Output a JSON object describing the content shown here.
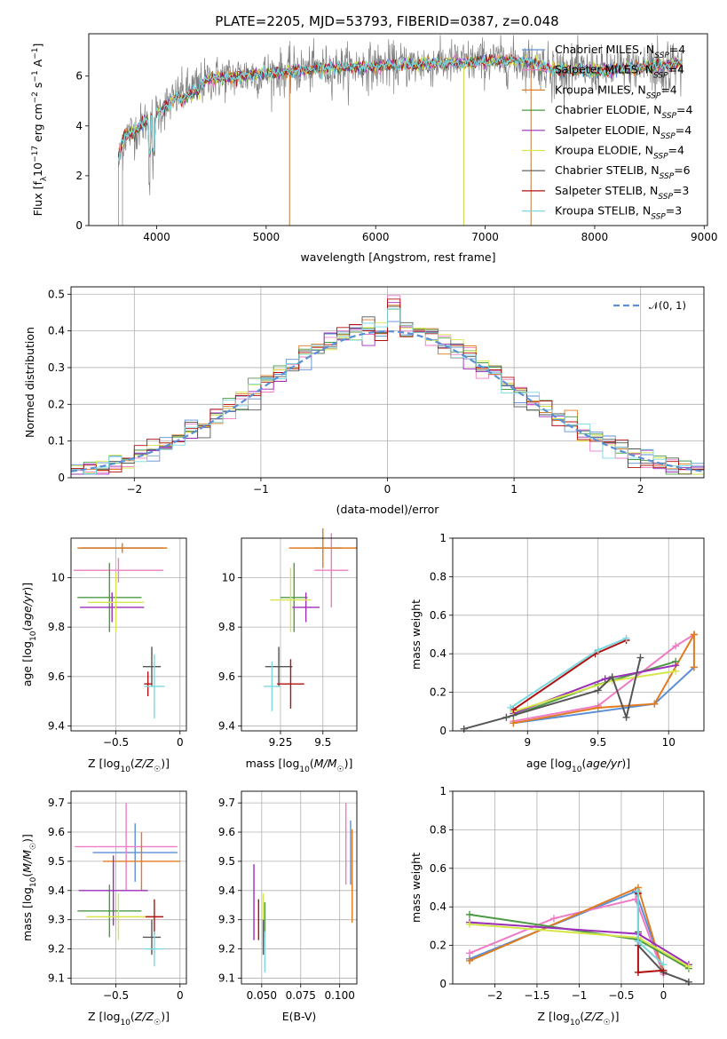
{
  "figure": {
    "title": "PLATE=2205, MJD=53793, FIBERID=0387, z=0.048"
  },
  "colors": {
    "Chabrier MILES": "#5b8fd6",
    "Salpeter MILES": "#ef7bc6",
    "Kroupa MILES": "#e07b20",
    "Chabrier ELODIE": "#4d9a45",
    "Salpeter ELODIE": "#9b2fb8",
    "Kroupa ELODIE": "#d6e64a",
    "Chabrier STELIB": "#555555",
    "Salpeter STELIB": "#b01010",
    "Kroupa STELIB": "#7ad8df"
  },
  "legend_spectrum": [
    {
      "name": "Chabrier MILES",
      "nssp": "4"
    },
    {
      "name": "Salpeter MILES",
      "nssp": "4"
    },
    {
      "name": "Kroupa MILES",
      "nssp": "4"
    },
    {
      "name": "Chabrier ELODIE",
      "nssp": "4"
    },
    {
      "name": "Salpeter ELODIE",
      "nssp": "4"
    },
    {
      "name": "Kroupa ELODIE",
      "nssp": "4"
    },
    {
      "name": "Chabrier STELIB",
      "nssp": "6"
    },
    {
      "name": "Salpeter STELIB",
      "nssp": "3"
    },
    {
      "name": "Kroupa STELIB",
      "nssp": "3"
    }
  ],
  "legend_hist": "𝒩(0, 1)",
  "chart_data": [
    {
      "id": "spectrum",
      "type": "line",
      "xlabel": "wavelength [Angstrom, rest frame]",
      "ylabel": "Flux [f_λ 10^-17 erg cm^-2 s^-1 A^-1]",
      "xlim": [
        3380,
        9030
      ],
      "ylim": [
        0,
        7.7
      ],
      "xticks": [
        4000,
        5000,
        6000,
        7000,
        8000,
        9000
      ],
      "yticks": [
        0,
        2,
        4,
        6
      ],
      "data_points": {
        "x": [
          3650,
          3700,
          3800,
          3900,
          4000,
          4200,
          4500,
          5000,
          5500,
          6000,
          6500,
          7000,
          7400,
          7600,
          8000,
          8500,
          8800
        ],
        "y": [
          2.8,
          3.6,
          3.8,
          4.2,
          4.5,
          5.2,
          5.9,
          6.1,
          6.3,
          6.4,
          6.5,
          6.6,
          6.6,
          6.3,
          6.2,
          6.4,
          6.5
        ]
      }
    },
    {
      "id": "residual_histogram",
      "type": "line",
      "xlabel": "(data-model)/error",
      "ylabel": "Normed distribution",
      "xlim": [
        -2.5,
        2.5
      ],
      "ylim": [
        0,
        0.52
      ],
      "xticks": [
        -2,
        -1,
        0,
        1,
        2
      ],
      "yticks": [
        0.0,
        0.1,
        0.2,
        0.3,
        0.4,
        0.5
      ],
      "grid": true,
      "legend_position": "top-right",
      "series": [
        {
          "name": "𝒩(0, 1)",
          "style": "dashed",
          "mean": 0,
          "sigma": 1
        }
      ]
    },
    {
      "id": "age_vs_Z",
      "type": "scatter",
      "xlabel": "Z [log10(Z/Z☉)]",
      "ylabel": "age [log10(age/yr)]",
      "xlim": [
        -0.85,
        0.05
      ],
      "ylim": [
        9.38,
        10.16
      ],
      "xticks": [
        -0.5,
        0.0
      ],
      "yticks": [
        9.4,
        9.6,
        9.8,
        10.0
      ],
      "grid": true,
      "points": [
        {
          "model": "Chabrier MILES",
          "x": -0.45,
          "xerr": 0.32,
          "y": 10.12,
          "yerr": 0.0
        },
        {
          "model": "Salpeter MILES",
          "x": -0.48,
          "xerr": 0.35,
          "y": 10.03,
          "yerr": 0.05
        },
        {
          "model": "Kroupa MILES",
          "x": -0.45,
          "xerr": 0.35,
          "y": 10.12,
          "yerr": 0.02
        },
        {
          "model": "Chabrier ELODIE",
          "x": -0.55,
          "xerr": 0.25,
          "y": 9.92,
          "yerr": 0.14
        },
        {
          "model": "Salpeter ELODIE",
          "x": -0.53,
          "xerr": 0.25,
          "y": 9.88,
          "yerr": 0.06
        },
        {
          "model": "Kroupa ELODIE",
          "x": -0.5,
          "xerr": 0.22,
          "y": 9.9,
          "yerr": 0.12
        },
        {
          "model": "Chabrier STELIB",
          "x": -0.22,
          "xerr": 0.07,
          "y": 9.64,
          "yerr": 0.08
        },
        {
          "model": "Salpeter STELIB",
          "x": -0.25,
          "xerr": 0.03,
          "y": 9.57,
          "yerr": 0.05
        },
        {
          "model": "Kroupa STELIB",
          "x": -0.2,
          "xerr": 0.08,
          "y": 9.56,
          "yerr": 0.13
        }
      ]
    },
    {
      "id": "age_vs_mass",
      "type": "scatter",
      "xlabel": "mass [log10(M/M☉)]",
      "ylabel": "",
      "xlim": [
        9.02,
        9.7
      ],
      "ylim": [
        9.38,
        10.16
      ],
      "xticks": [
        9.25,
        9.5
      ],
      "yticks": [
        9.4,
        9.6,
        9.8,
        10.0
      ],
      "grid": true,
      "points": [
        {
          "model": "Chabrier MILES",
          "x": 9.53,
          "xerr": 0.08,
          "y": 10.12,
          "yerr": 0.0
        },
        {
          "model": "Salpeter MILES",
          "x": 9.55,
          "xerr": 0.1,
          "y": 10.03,
          "yerr": 0.15
        },
        {
          "model": "Kroupa MILES",
          "x": 9.5,
          "xerr": 0.2,
          "y": 10.12,
          "yerr": 0.08
        },
        {
          "model": "Chabrier ELODIE",
          "x": 9.33,
          "xerr": 0.08,
          "y": 9.92,
          "yerr": 0.14
        },
        {
          "model": "Salpeter ELODIE",
          "x": 9.4,
          "xerr": 0.08,
          "y": 9.88,
          "yerr": 0.06
        },
        {
          "model": "Kroupa ELODIE",
          "x": 9.31,
          "xerr": 0.12,
          "y": 9.91,
          "yerr": 0.13
        },
        {
          "model": "Chabrier STELIB",
          "x": 9.24,
          "xerr": 0.08,
          "y": 9.64,
          "yerr": 0.08
        },
        {
          "model": "Salpeter STELIB",
          "x": 9.31,
          "xerr": 0.08,
          "y": 9.57,
          "yerr": 0.1
        },
        {
          "model": "Kroupa STELIB",
          "x": 9.2,
          "xerr": 0.05,
          "y": 9.56,
          "yerr": 0.1
        }
      ]
    },
    {
      "id": "mass_weight_vs_age",
      "type": "line",
      "xlabel": "age [log10(age/yr)]",
      "ylabel": "mass weight",
      "xlim": [
        8.47,
        10.25
      ],
      "ylim": [
        0,
        1.0
      ],
      "xticks": [
        9.0,
        9.5,
        10.0
      ],
      "yticks": [
        0.0,
        0.2,
        0.4,
        0.6,
        0.8,
        1.0
      ],
      "grid": true,
      "series": [
        {
          "name": "Chabrier MILES",
          "x": [
            8.9,
            9.9,
            10.18
          ],
          "y": [
            0.04,
            0.14,
            0.33
          ]
        },
        {
          "name": "Salpeter MILES",
          "x": [
            8.9,
            9.5,
            10.05,
            10.18
          ],
          "y": [
            0.05,
            0.13,
            0.44,
            0.5
          ]
        },
        {
          "name": "Kroupa MILES",
          "x": [
            8.9,
            9.5,
            9.9,
            10.18,
            10.18
          ],
          "y": [
            0.04,
            0.12,
            0.14,
            0.5,
            0.33
          ]
        },
        {
          "name": "Chabrier ELODIE",
          "x": [
            8.9,
            9.5,
            10.05
          ],
          "y": [
            0.08,
            0.24,
            0.36
          ]
        },
        {
          "name": "Salpeter ELODIE",
          "x": [
            8.9,
            9.55,
            10.05
          ],
          "y": [
            0.09,
            0.27,
            0.34
          ]
        },
        {
          "name": "Kroupa ELODIE",
          "x": [
            8.9,
            9.6,
            10.05
          ],
          "y": [
            0.1,
            0.26,
            0.31
          ]
        },
        {
          "name": "Chabrier STELIB",
          "x": [
            8.55,
            8.85,
            9.5,
            9.6,
            9.7,
            9.8
          ],
          "y": [
            0.01,
            0.07,
            0.21,
            0.28,
            0.07,
            0.38
          ]
        },
        {
          "name": "Salpeter STELIB",
          "x": [
            8.9,
            9.48,
            9.7
          ],
          "y": [
            0.11,
            0.4,
            0.47
          ]
        },
        {
          "name": "Kroupa STELIB",
          "x": [
            8.88,
            9.5,
            9.7
          ],
          "y": [
            0.12,
            0.42,
            0.48
          ]
        }
      ]
    },
    {
      "id": "mass_vs_Z",
      "type": "scatter",
      "xlabel": "Z [log10(Z/Z☉)]",
      "ylabel": "mass [log10(M/M☉)]",
      "xlim": [
        -0.85,
        0.05
      ],
      "ylim": [
        9.08,
        9.74
      ],
      "xticks": [
        -0.5,
        0.0
      ],
      "yticks": [
        9.1,
        9.2,
        9.3,
        9.4,
        9.5,
        9.6,
        9.7
      ],
      "grid": true,
      "points": [
        {
          "model": "Chabrier MILES",
          "x": -0.35,
          "xerr": 0.33,
          "y": 9.53,
          "yerr": 0.1
        },
        {
          "model": "Salpeter MILES",
          "x": -0.42,
          "xerr": 0.4,
          "y": 9.55,
          "yerr": 0.15
        },
        {
          "model": "Kroupa MILES",
          "x": -0.3,
          "xerr": 0.3,
          "y": 9.5,
          "yerr": 0.1
        },
        {
          "model": "Chabrier ELODIE",
          "x": -0.55,
          "xerr": 0.25,
          "y": 9.33,
          "yerr": 0.09
        },
        {
          "model": "Salpeter ELODIE",
          "x": -0.52,
          "xerr": 0.27,
          "y": 9.4,
          "yerr": 0.12
        },
        {
          "model": "Kroupa ELODIE",
          "x": -0.48,
          "xerr": 0.25,
          "y": 9.31,
          "yerr": 0.08
        },
        {
          "model": "Chabrier STELIB",
          "x": -0.22,
          "xerr": 0.07,
          "y": 9.24,
          "yerr": 0.06
        },
        {
          "model": "Salpeter STELIB",
          "x": -0.2,
          "xerr": 0.07,
          "y": 9.31,
          "yerr": 0.06
        },
        {
          "model": "Kroupa STELIB",
          "x": -0.2,
          "xerr": 0.08,
          "y": 9.2,
          "yerr": 0.06
        }
      ]
    },
    {
      "id": "mass_vs_ebv",
      "type": "scatter",
      "xlabel": "E(B-V)",
      "ylabel": "",
      "xlim": [
        0.037,
        0.111
      ],
      "ylim": [
        9.08,
        9.74
      ],
      "xticks": [
        0.05,
        0.075,
        0.1
      ],
      "yticks": [
        9.1,
        9.2,
        9.3,
        9.4,
        9.5,
        9.6,
        9.7
      ],
      "grid": true,
      "points": [
        {
          "model": "Chabrier MILES",
          "x": 0.107,
          "xerr": 0,
          "y": 9.53,
          "yerr": 0.11
        },
        {
          "model": "Salpeter MILES",
          "x": 0.104,
          "xerr": 0,
          "y": 9.56,
          "yerr": 0.14
        },
        {
          "model": "Kroupa MILES",
          "x": 0.108,
          "xerr": 0,
          "y": 9.45,
          "yerr": 0.16
        },
        {
          "model": "Chabrier ELODIE",
          "x": 0.052,
          "xerr": 0,
          "y": 9.3,
          "yerr": 0.06
        },
        {
          "model": "Salpeter ELODIE",
          "x": 0.045,
          "xerr": 0,
          "y": 9.36,
          "yerr": 0.13
        },
        {
          "model": "Kroupa ELODIE",
          "x": 0.051,
          "xerr": 0,
          "y": 9.3,
          "yerr": 0.09
        },
        {
          "model": "Chabrier STELIB",
          "x": 0.051,
          "xerr": 0,
          "y": 9.24,
          "yerr": 0.06
        },
        {
          "model": "Salpeter STELIB",
          "x": 0.048,
          "xerr": 0,
          "y": 9.3,
          "yerr": 0.07
        },
        {
          "model": "Kroupa STELIB",
          "x": 0.052,
          "xerr": 0,
          "y": 9.19,
          "yerr": 0.07
        }
      ]
    },
    {
      "id": "mass_weight_vs_Z",
      "type": "line",
      "xlabel": "Z [log10(Z/Z☉)]",
      "ylabel": "mass weight",
      "xlim": [
        -2.5,
        0.48
      ],
      "ylim": [
        0,
        1.0
      ],
      "xticks": [
        -2.0,
        -1.5,
        -1.0,
        -0.5,
        0.0
      ],
      "yticks": [
        0.0,
        0.2,
        0.4,
        0.6,
        0.8,
        1.0
      ],
      "grid": true,
      "series": [
        {
          "name": "Chabrier MILES",
          "x": [
            -2.3,
            -0.33,
            0.0
          ],
          "y": [
            0.13,
            0.48,
            0.07
          ]
        },
        {
          "name": "Salpeter MILES",
          "x": [
            -2.3,
            -1.3,
            -0.33,
            -0.33,
            0.0
          ],
          "y": [
            0.16,
            0.34,
            0.44,
            0.44,
            0.05
          ]
        },
        {
          "name": "Kroupa MILES",
          "x": [
            -2.3,
            -0.3,
            0.0
          ],
          "y": [
            0.12,
            0.5,
            0.06
          ]
        },
        {
          "name": "Chabrier ELODIE",
          "x": [
            -2.3,
            -0.3,
            0.3
          ],
          "y": [
            0.36,
            0.23,
            0.08
          ]
        },
        {
          "name": "Salpeter ELODIE",
          "x": [
            -2.3,
            -0.3,
            0.3
          ],
          "y": [
            0.32,
            0.26,
            0.1
          ]
        },
        {
          "name": "Kroupa ELODIE",
          "x": [
            -2.3,
            -0.3,
            0.3
          ],
          "y": [
            0.31,
            0.24,
            0.09
          ]
        },
        {
          "name": "Chabrier STELIB",
          "x": [
            -0.3,
            -0.3,
            0.0,
            0.3
          ],
          "y": [
            0.27,
            0.2,
            0.06,
            0.01
          ]
        },
        {
          "name": "Salpeter STELIB",
          "x": [
            -0.3,
            -0.3,
            0.0
          ],
          "y": [
            0.47,
            0.06,
            0.07
          ]
        },
        {
          "name": "Kroupa STELIB",
          "x": [
            -0.3,
            -0.3,
            0.0
          ],
          "y": [
            0.48,
            0.22,
            0.1
          ]
        }
      ]
    }
  ]
}
